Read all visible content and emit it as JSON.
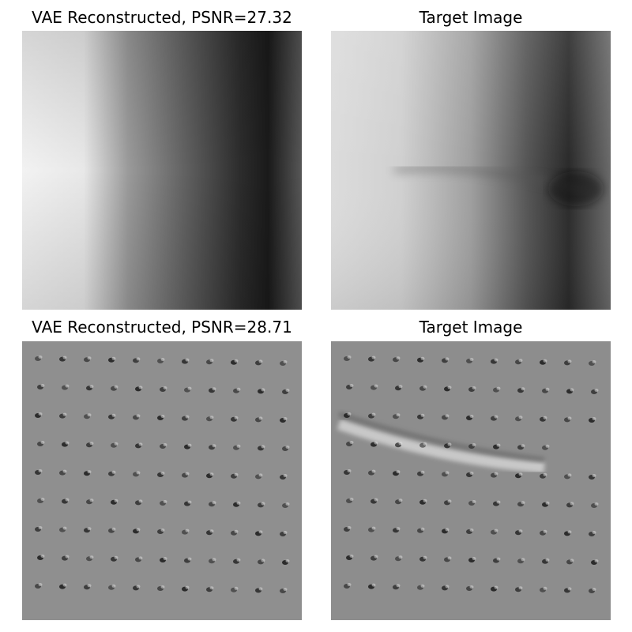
{
  "figure": {
    "panels": [
      {
        "title": "VAE Reconstructed, PSNR=27.32",
        "content": "grayscale gradient, light left to dark right"
      },
      {
        "title": "Target Image",
        "content": "grayscale gradient with dark horizontal streak"
      },
      {
        "title": "VAE Reconstructed, PSNR=28.71",
        "content": "gray field with grid of dark dots"
      },
      {
        "title": "Target Image",
        "content": "gray field with grid of dark dots and bright diagonal streak"
      }
    ]
  }
}
